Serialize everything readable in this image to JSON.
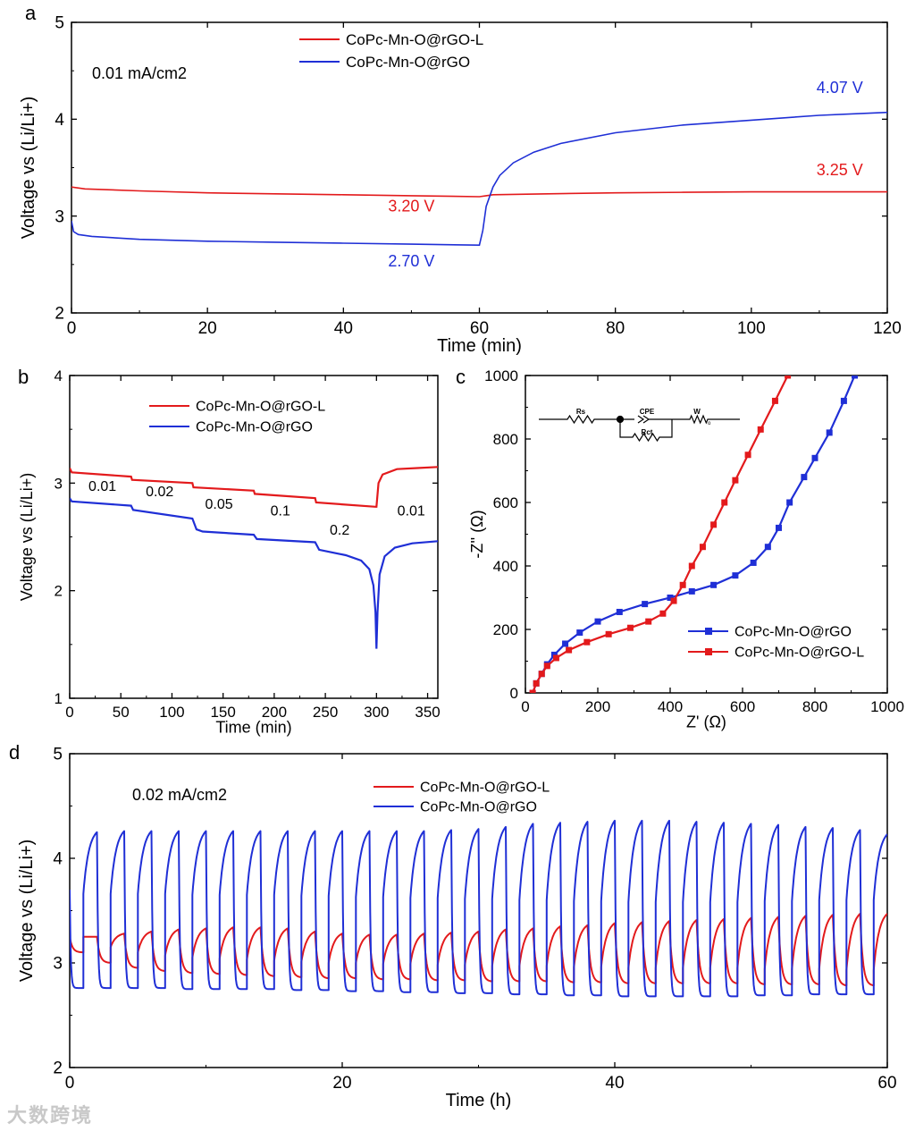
{
  "chart_data": [
    {
      "panel": "a",
      "type": "line",
      "xlabel": "Time (min)",
      "ylabel": "Voltage vs (Li/Li+)",
      "xlim": [
        0,
        120
      ],
      "ylim": [
        2,
        5
      ],
      "xticks": [
        0,
        20,
        40,
        60,
        80,
        100,
        120
      ],
      "yticks": [
        2,
        3,
        4,
        5
      ],
      "annotation": "0.01 mA/cm2",
      "series": [
        {
          "name": "CoPc-Mn-O@rGO-L",
          "color": "#e31a1c",
          "x": [
            0,
            2,
            10,
            20,
            30,
            40,
            50,
            60,
            61,
            62,
            70,
            80,
            90,
            100,
            110,
            120
          ],
          "y": [
            3.3,
            3.28,
            3.26,
            3.24,
            3.23,
            3.22,
            3.21,
            3.2,
            3.21,
            3.22,
            3.23,
            3.24,
            3.245,
            3.25,
            3.25,
            3.25
          ]
        },
        {
          "name": "CoPc-Mn-O@rGO",
          "color": "#1f2fd6",
          "x": [
            0,
            0.3,
            1,
            3,
            10,
            20,
            30,
            40,
            50,
            60,
            60.5,
            61,
            62,
            63,
            65,
            68,
            72,
            80,
            90,
            100,
            110,
            120
          ],
          "y": [
            2.95,
            2.84,
            2.81,
            2.79,
            2.76,
            2.74,
            2.73,
            2.72,
            2.71,
            2.7,
            2.85,
            3.1,
            3.3,
            3.42,
            3.55,
            3.66,
            3.75,
            3.86,
            3.94,
            3.99,
            4.04,
            4.07
          ]
        }
      ],
      "labels": [
        {
          "text": "3.20 V",
          "x": 50,
          "y": 3.05,
          "color": "#e31a1c"
        },
        {
          "text": "2.70 V",
          "x": 50,
          "y": 2.48,
          "color": "#1f2fd6"
        },
        {
          "text": "4.07 V",
          "x": 113,
          "y": 4.27,
          "color": "#1f2fd6"
        },
        {
          "text": "3.25 V",
          "x": 113,
          "y": 3.42,
          "color": "#e31a1c"
        }
      ]
    },
    {
      "panel": "b",
      "type": "line",
      "xlabel": "Time (min)",
      "ylabel": "Voltage vs (Li/Li+)",
      "xlim": [
        0,
        360
      ],
      "ylim": [
        1,
        4
      ],
      "xticks": [
        0,
        50,
        100,
        150,
        200,
        250,
        300,
        350
      ],
      "yticks": [
        1,
        2,
        3,
        4
      ],
      "series": [
        {
          "name": "CoPc-Mn-O@rGO-L",
          "color": "#e31a1c",
          "x": [
            0,
            2,
            60,
            61,
            120,
            121,
            180,
            181,
            240,
            241,
            299,
            300,
            302,
            306,
            320,
            340,
            360
          ],
          "y": [
            3.14,
            3.1,
            3.06,
            3.03,
            3.0,
            2.96,
            2.93,
            2.9,
            2.86,
            2.82,
            2.78,
            2.78,
            3.0,
            3.08,
            3.13,
            3.14,
            3.15
          ]
        },
        {
          "name": "CoPc-Mn-O@rGO",
          "color": "#1f2fd6",
          "x": [
            0,
            2,
            60,
            62,
            120,
            124,
            130,
            180,
            183,
            240,
            244,
            270,
            285,
            293,
            297,
            299,
            300,
            301,
            303,
            308,
            318,
            335,
            360
          ],
          "y": [
            2.86,
            2.83,
            2.79,
            2.75,
            2.67,
            2.57,
            2.55,
            2.52,
            2.48,
            2.45,
            2.38,
            2.33,
            2.28,
            2.2,
            2.05,
            1.8,
            1.46,
            1.8,
            2.15,
            2.32,
            2.4,
            2.44,
            2.46
          ]
        }
      ],
      "labels": [
        {
          "text": "0.01",
          "x": 32,
          "y": 2.93
        },
        {
          "text": "0.02",
          "x": 88,
          "y": 2.88
        },
        {
          "text": "0.05",
          "x": 146,
          "y": 2.76
        },
        {
          "text": "0.1",
          "x": 206,
          "y": 2.7
        },
        {
          "text": "0.2",
          "x": 264,
          "y": 2.52
        },
        {
          "text": "0.01",
          "x": 334,
          "y": 2.7
        }
      ]
    },
    {
      "panel": "c",
      "type": "scatter",
      "xlabel": "Z' (Ω)",
      "ylabel": "-Z'' (Ω)",
      "xlim": [
        0,
        1000
      ],
      "ylim": [
        0,
        1000
      ],
      "xticks": [
        0,
        200,
        400,
        600,
        800,
        1000
      ],
      "yticks": [
        0,
        200,
        400,
        600,
        800,
        1000
      ],
      "circuit": {
        "elements": [
          "Rs",
          "CPE",
          "Rct",
          "W"
        ],
        "subscript": "o"
      },
      "series": [
        {
          "name": "CoPc-Mn-O@rGO",
          "color": "#1f2fd6",
          "x": [
            20,
            30,
            45,
            60,
            80,
            110,
            150,
            200,
            260,
            330,
            400,
            460,
            520,
            580,
            630,
            670,
            700,
            730,
            770,
            800,
            840,
            880,
            910
          ],
          "y": [
            0,
            30,
            60,
            90,
            120,
            155,
            190,
            225,
            255,
            280,
            300,
            320,
            340,
            370,
            410,
            460,
            520,
            600,
            680,
            740,
            820,
            920,
            1000
          ]
        },
        {
          "name": "CoPc-Mn-O@rGO-L",
          "color": "#e31a1c",
          "x": [
            20,
            30,
            45,
            60,
            85,
            120,
            170,
            230,
            290,
            340,
            380,
            410,
            435,
            460,
            490,
            520,
            550,
            580,
            615,
            650,
            690,
            725
          ],
          "y": [
            0,
            30,
            60,
            85,
            110,
            135,
            160,
            185,
            205,
            225,
            250,
            290,
            340,
            400,
            460,
            530,
            600,
            670,
            750,
            830,
            920,
            1000
          ]
        }
      ]
    },
    {
      "panel": "d",
      "type": "line",
      "xlabel": "Time (h)",
      "ylabel": "Voltage vs (Li/Li+)",
      "xlim": [
        0,
        60
      ],
      "ylim": [
        2,
        5
      ],
      "xticks": [
        0,
        20,
        40,
        60
      ],
      "yticks": [
        2,
        3,
        4,
        5
      ],
      "annotation": "0.02 mA/cm2",
      "cycle_period_h": 2,
      "series": [
        {
          "name": "CoPc-Mn-O@rGO-L",
          "color": "#e31a1c",
          "cycle_high": [
            3.25,
            3.28,
            3.3,
            3.32,
            3.33,
            3.34,
            3.34,
            3.33,
            3.3,
            3.28,
            3.27,
            3.27,
            3.28,
            3.29,
            3.3,
            3.32,
            3.33,
            3.35,
            3.36,
            3.38,
            3.39,
            3.4,
            3.41,
            3.42,
            3.43,
            3.44,
            3.45,
            3.46,
            3.47,
            3.47
          ],
          "cycle_low": [
            3.1,
            3.0,
            2.95,
            2.92,
            2.9,
            2.89,
            2.88,
            2.87,
            2.86,
            2.85,
            2.85,
            2.84,
            2.84,
            2.83,
            2.83,
            2.82,
            2.82,
            2.82,
            2.81,
            2.81,
            2.8,
            2.8,
            2.8,
            2.8,
            2.8,
            2.79,
            2.79,
            2.79,
            2.78,
            2.78
          ]
        },
        {
          "name": "CoPc-Mn-O@rGO",
          "color": "#1f2fd6",
          "cycle_high": [
            4.25,
            4.26,
            4.26,
            4.26,
            4.26,
            4.26,
            4.26,
            4.26,
            4.26,
            4.26,
            4.26,
            4.26,
            4.26,
            4.27,
            4.28,
            4.3,
            4.33,
            4.34,
            4.35,
            4.36,
            4.36,
            4.36,
            4.35,
            4.34,
            4.33,
            4.32,
            4.3,
            4.29,
            4.27,
            4.23
          ],
          "cycle_low": [
            2.76,
            2.76,
            2.76,
            2.76,
            2.75,
            2.75,
            2.75,
            2.75,
            2.74,
            2.74,
            2.73,
            2.73,
            2.72,
            2.72,
            2.71,
            2.71,
            2.7,
            2.7,
            2.69,
            2.69,
            2.68,
            2.68,
            2.68,
            2.68,
            2.68,
            2.69,
            2.69,
            2.7,
            2.7,
            2.7
          ]
        }
      ]
    }
  ],
  "panel_labels": [
    "a",
    "b",
    "c",
    "d"
  ],
  "watermark": "大数跨境"
}
